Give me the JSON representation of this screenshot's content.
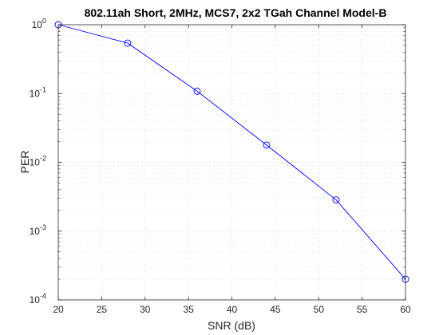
{
  "chart_data": {
    "type": "line",
    "title": "802.11ah Short, 2MHz, MCS7, 2x2 TGah Channel Model-B",
    "xlabel": "SNR (dB)",
    "ylabel": "PER",
    "xlim": [
      20,
      60
    ],
    "ylim": [
      0.0001,
      1
    ],
    "yscale": "log",
    "grid": true,
    "minor_grid": true,
    "x_ticks": [
      20,
      25,
      30,
      35,
      40,
      45,
      50,
      55,
      60
    ],
    "y_ticks": [
      {
        "base": "10",
        "exp": "-4"
      },
      {
        "base": "10",
        "exp": "-3"
      },
      {
        "base": "10",
        "exp": "-2"
      },
      {
        "base": "10",
        "exp": "-1"
      },
      {
        "base": "10",
        "exp": "0"
      }
    ],
    "series": [
      {
        "color": "#0000ff",
        "marker": "circle",
        "x": [
          20,
          28,
          36,
          44,
          52,
          60
        ],
        "y": [
          1.0,
          0.54,
          0.108,
          0.0178,
          0.00285,
          0.0002
        ]
      }
    ]
  }
}
